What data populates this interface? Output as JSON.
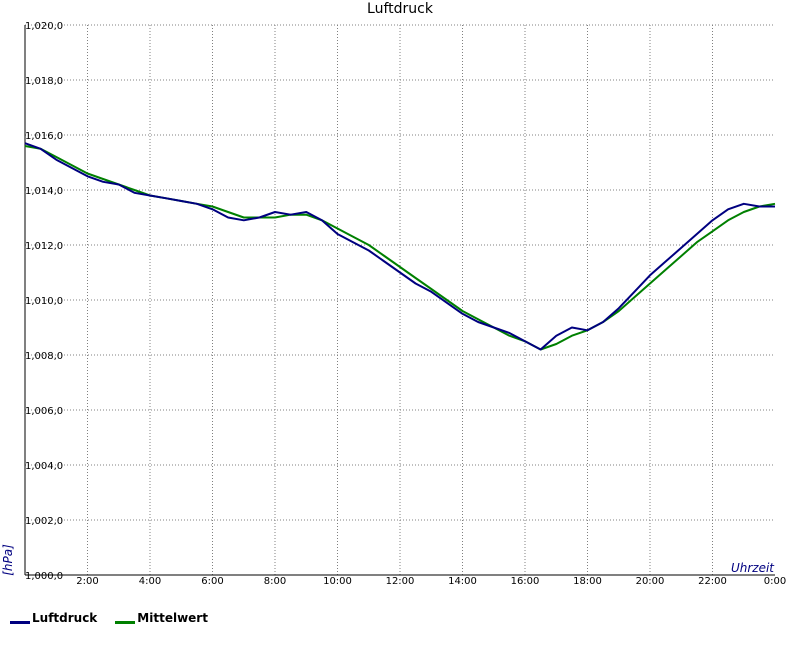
{
  "chart_data": {
    "type": "line",
    "title": "Luftdruck",
    "xlabel": "Uhrzeit",
    "ylabel": "[hPa]",
    "xlim": [
      0,
      24
    ],
    "ylim": [
      1000,
      1020
    ],
    "x_tick_labels": [
      "2:00",
      "4:00",
      "6:00",
      "8:00",
      "10:00",
      "12:00",
      "14:00",
      "16:00",
      "18:00",
      "20:00",
      "22:00",
      "0:00"
    ],
    "y_tick_labels": [
      "1,000,0",
      "1,002,0",
      "1,004,0",
      "1,006,0",
      "1,008,0",
      "1,010,0",
      "1,012,0",
      "1,014,0",
      "1,016,0",
      "1,018,0",
      "1,020,0"
    ],
    "grid": true,
    "legend_position": "bottom-left",
    "series": [
      {
        "name": "Luftdruck",
        "color": "#000080",
        "x": [
          0,
          0.5,
          1,
          1.5,
          2,
          2.5,
          3,
          3.5,
          4,
          4.5,
          5,
          5.5,
          6,
          6.5,
          7,
          7.5,
          8,
          8.5,
          9,
          9.5,
          10,
          10.5,
          11,
          11.5,
          12,
          12.5,
          13,
          13.5,
          14,
          14.5,
          15,
          15.5,
          16,
          16.5,
          17,
          17.5,
          18,
          18.5,
          19,
          19.5,
          20,
          20.5,
          21,
          21.5,
          22,
          22.5,
          23,
          23.5,
          24
        ],
        "values": [
          1015.7,
          1015.5,
          1015.1,
          1014.8,
          1014.5,
          1014.3,
          1014.2,
          1013.9,
          1013.8,
          1013.7,
          1013.6,
          1013.5,
          1013.3,
          1013.0,
          1012.9,
          1013.0,
          1013.2,
          1013.1,
          1013.2,
          1012.9,
          1012.4,
          1012.1,
          1011.8,
          1011.4,
          1011.0,
          1010.6,
          1010.3,
          1009.9,
          1009.5,
          1009.2,
          1009.0,
          1008.8,
          1008.5,
          1008.2,
          1008.7,
          1009.0,
          1008.9,
          1009.2,
          1009.7,
          1010.3,
          1010.9,
          1011.4,
          1011.9,
          1012.4,
          1012.9,
          1013.3,
          1013.5,
          1013.4,
          1013.4
        ]
      },
      {
        "name": "Mittelwert",
        "color": "#008000",
        "x": [
          0,
          0.5,
          1,
          1.5,
          2,
          2.5,
          3,
          3.5,
          4,
          4.5,
          5,
          5.5,
          6,
          6.5,
          7,
          7.5,
          8,
          8.5,
          9,
          9.5,
          10,
          10.5,
          11,
          11.5,
          12,
          12.5,
          13,
          13.5,
          14,
          14.5,
          15,
          15.5,
          16,
          16.5,
          17,
          17.5,
          18,
          18.5,
          19,
          19.5,
          20,
          20.5,
          21,
          21.5,
          22,
          22.5,
          23,
          23.5,
          24
        ],
        "values": [
          1015.6,
          1015.5,
          1015.2,
          1014.9,
          1014.6,
          1014.4,
          1014.2,
          1014.0,
          1013.8,
          1013.7,
          1013.6,
          1013.5,
          1013.4,
          1013.2,
          1013.0,
          1013.0,
          1013.0,
          1013.1,
          1013.1,
          1012.9,
          1012.6,
          1012.3,
          1012.0,
          1011.6,
          1011.2,
          1010.8,
          1010.4,
          1010.0,
          1009.6,
          1009.3,
          1009.0,
          1008.7,
          1008.5,
          1008.2,
          1008.4,
          1008.7,
          1008.9,
          1009.2,
          1009.6,
          1010.1,
          1010.6,
          1011.1,
          1011.6,
          1012.1,
          1012.5,
          1012.9,
          1013.2,
          1013.4,
          1013.5
        ]
      }
    ]
  },
  "legend": {
    "items": [
      {
        "label": "Luftdruck",
        "color": "#000080"
      },
      {
        "label": "Mittelwert",
        "color": "#008000"
      }
    ]
  }
}
